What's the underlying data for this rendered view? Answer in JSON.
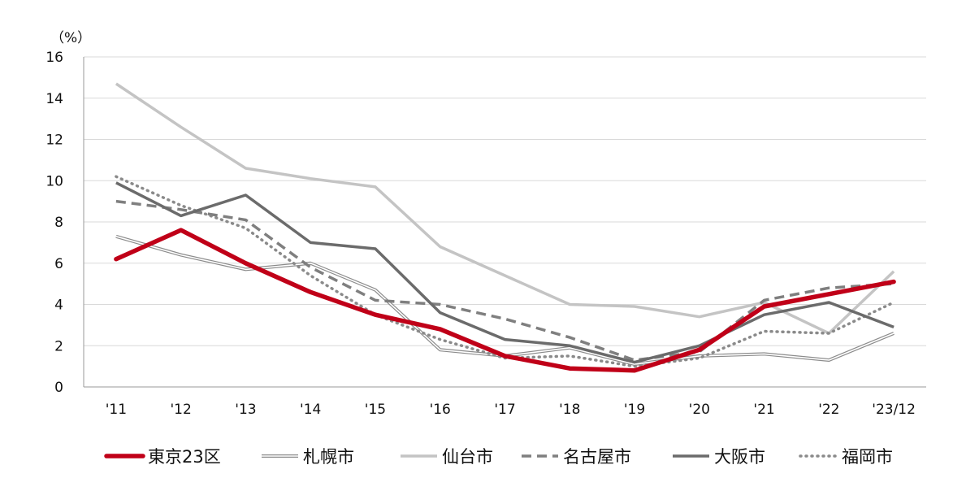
{
  "chart_data": {
    "type": "line",
    "y_unit_label": "（%）",
    "ylim": [
      0,
      16
    ],
    "yticks": [
      0,
      2,
      4,
      6,
      8,
      10,
      12,
      14,
      16
    ],
    "grid": true,
    "legend_position": "bottom",
    "categories": [
      "'11",
      "'12",
      "'13",
      "'14",
      "'15",
      "'16",
      "'17",
      "'18",
      "'19",
      "'20",
      "'21",
      "'22",
      "'23/12"
    ],
    "series": [
      {
        "name": "東京23区",
        "color": "#c00018",
        "style": "thick-solid",
        "values": [
          6.2,
          7.6,
          6.0,
          4.6,
          3.5,
          2.8,
          1.5,
          0.9,
          0.8,
          1.8,
          3.9,
          4.5,
          5.1
        ]
      },
      {
        "name": "札幌市",
        "color": "#8c8c8c",
        "style": "double",
        "values": [
          7.3,
          6.4,
          5.7,
          6.0,
          4.7,
          1.8,
          1.5,
          1.9,
          1.1,
          1.5,
          1.6,
          1.3,
          2.6
        ]
      },
      {
        "name": "仙台市",
        "color": "#c4c4c4",
        "style": "solid",
        "values": [
          14.7,
          12.6,
          10.6,
          10.1,
          9.7,
          6.8,
          5.4,
          4.0,
          3.9,
          3.4,
          4.1,
          2.6,
          5.6
        ]
      },
      {
        "name": "名古屋市",
        "color": "#7f7f7f",
        "style": "dashed",
        "values": [
          9.0,
          8.6,
          8.1,
          5.8,
          4.2,
          4.0,
          3.3,
          2.4,
          1.3,
          1.7,
          4.2,
          4.8,
          5.0
        ]
      },
      {
        "name": "大阪市",
        "color": "#6b6b6b",
        "style": "solid",
        "values": [
          9.9,
          8.3,
          9.3,
          7.0,
          6.7,
          3.6,
          2.3,
          2.0,
          1.2,
          2.0,
          3.5,
          4.1,
          2.9
        ]
      },
      {
        "name": "福岡市",
        "color": "#8a8a8a",
        "style": "dotted",
        "values": [
          10.2,
          8.8,
          7.7,
          5.4,
          3.5,
          2.3,
          1.4,
          1.5,
          1.0,
          1.4,
          2.7,
          2.6,
          4.1
        ]
      }
    ]
  }
}
